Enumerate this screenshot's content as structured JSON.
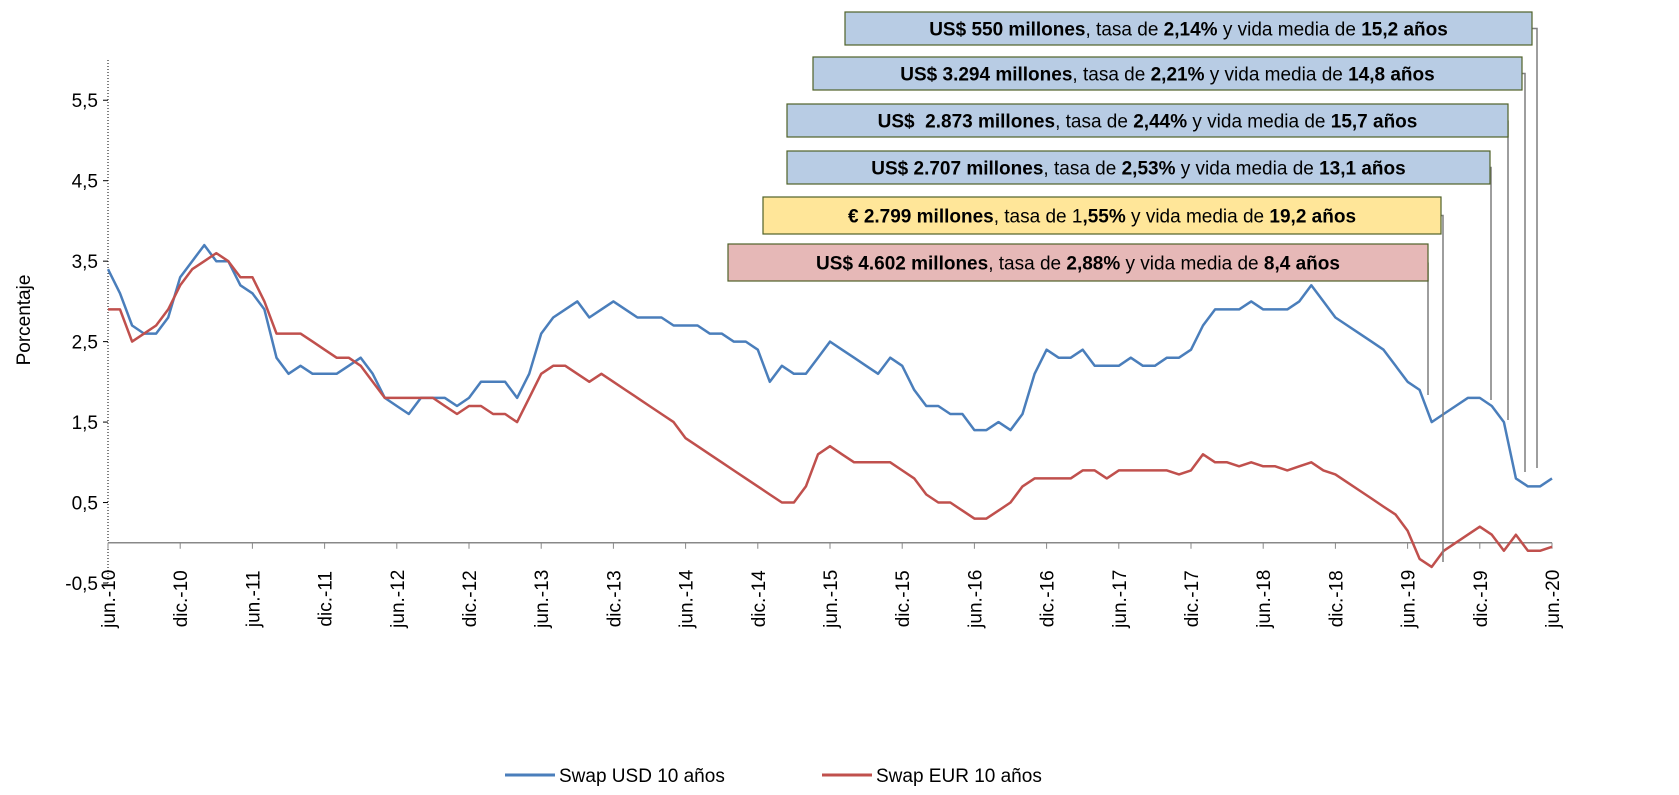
{
  "chart_data": {
    "type": "line",
    "y_label": "Porcentaje",
    "categories": [
      "jun.-10",
      null,
      null,
      null,
      null,
      null,
      "dic.-10",
      null,
      null,
      null,
      null,
      null,
      "jun.-11",
      null,
      null,
      null,
      null,
      null,
      "dic.-11",
      null,
      null,
      null,
      null,
      null,
      "jun.-12",
      null,
      null,
      null,
      null,
      null,
      "dic.-12",
      null,
      null,
      null,
      null,
      null,
      "jun.-13",
      null,
      null,
      null,
      null,
      null,
      "dic.-13",
      null,
      null,
      null,
      null,
      null,
      "jun.-14",
      null,
      null,
      null,
      null,
      null,
      "dic.-14",
      null,
      null,
      null,
      null,
      null,
      "jun.-15",
      null,
      null,
      null,
      null,
      null,
      "dic.-15",
      null,
      null,
      null,
      null,
      null,
      "jun.-16",
      null,
      null,
      null,
      null,
      null,
      "dic.-16",
      null,
      null,
      null,
      null,
      null,
      "jun.-17",
      null,
      null,
      null,
      null,
      null,
      "dic.-17",
      null,
      null,
      null,
      null,
      null,
      "jun.-18",
      null,
      null,
      null,
      null,
      null,
      "dic.-18",
      null,
      null,
      null,
      null,
      null,
      "jun.-19",
      null,
      null,
      null,
      null,
      null,
      "dic.-19",
      null,
      null,
      null,
      null,
      null,
      "jun.-20"
    ],
    "series": [
      {
        "name": "Swap USD 10 años",
        "color": "#4a7ebb",
        "values": [
          3.4,
          3.1,
          2.7,
          2.6,
          2.6,
          2.8,
          3.3,
          3.5,
          3.7,
          3.5,
          3.5,
          3.2,
          3.1,
          2.9,
          2.3,
          2.1,
          2.2,
          2.1,
          2.1,
          2.1,
          2.2,
          2.3,
          2.1,
          1.8,
          1.7,
          1.6,
          1.8,
          1.8,
          1.8,
          1.7,
          1.8,
          2.0,
          2.0,
          2.0,
          1.8,
          2.1,
          2.6,
          2.8,
          2.9,
          3.0,
          2.8,
          2.9,
          3.0,
          2.9,
          2.8,
          2.8,
          2.8,
          2.7,
          2.7,
          2.7,
          2.6,
          2.6,
          2.5,
          2.5,
          2.4,
          2.0,
          2.2,
          2.1,
          2.1,
          2.3,
          2.5,
          2.4,
          2.3,
          2.2,
          2.1,
          2.3,
          2.2,
          1.9,
          1.7,
          1.7,
          1.6,
          1.6,
          1.4,
          1.4,
          1.5,
          1.4,
          1.6,
          2.1,
          2.4,
          2.3,
          2.3,
          2.4,
          2.2,
          2.2,
          2.2,
          2.3,
          2.2,
          2.2,
          2.3,
          2.3,
          2.4,
          2.7,
          2.9,
          2.9,
          2.9,
          3.0,
          2.9,
          2.9,
          2.9,
          3.0,
          3.2,
          3.0,
          2.8,
          2.7,
          2.6,
          2.5,
          2.4,
          2.2,
          2.0,
          1.9,
          1.5,
          1.6,
          1.7,
          1.8,
          1.8,
          1.7,
          1.5,
          0.8,
          0.7,
          0.7,
          0.8
        ]
      },
      {
        "name": "Swap EUR 10 años",
        "color": "#c0504d",
        "values": [
          2.9,
          2.9,
          2.5,
          2.6,
          2.7,
          2.9,
          3.2,
          3.4,
          3.5,
          3.6,
          3.5,
          3.3,
          3.3,
          3.0,
          2.6,
          2.6,
          2.6,
          2.5,
          2.4,
          2.3,
          2.3,
          2.2,
          2.0,
          1.8,
          1.8,
          1.8,
          1.8,
          1.8,
          1.7,
          1.6,
          1.7,
          1.7,
          1.6,
          1.6,
          1.5,
          1.8,
          2.1,
          2.2,
          2.2,
          2.1,
          2.0,
          2.1,
          2.0,
          1.9,
          1.8,
          1.7,
          1.6,
          1.5,
          1.3,
          1.2,
          1.1,
          1.0,
          0.9,
          0.8,
          0.7,
          0.6,
          0.5,
          0.5,
          0.7,
          1.1,
          1.2,
          1.1,
          1.0,
          1.0,
          1.0,
          1.0,
          0.9,
          0.8,
          0.6,
          0.5,
          0.5,
          0.4,
          0.3,
          0.3,
          0.4,
          0.5,
          0.7,
          0.8,
          0.8,
          0.8,
          0.8,
          0.9,
          0.9,
          0.8,
          0.9,
          0.9,
          0.9,
          0.9,
          0.9,
          0.85,
          0.9,
          1.1,
          1.0,
          1.0,
          0.95,
          1.0,
          0.95,
          0.95,
          0.9,
          0.95,
          1.0,
          0.9,
          0.85,
          0.75,
          0.65,
          0.55,
          0.45,
          0.35,
          0.15,
          -0.2,
          -0.3,
          -0.1,
          0.0,
          0.1,
          0.2,
          0.1,
          -0.1,
          0.1,
          -0.1,
          -0.1,
          -0.05
        ]
      }
    ],
    "ylim": [
      -0.5,
      6.0
    ],
    "yticks": [
      {
        "value": -0.5,
        "label": "-0,5"
      },
      {
        "value": 0.5,
        "label": "0,5"
      },
      {
        "value": 1.5,
        "label": "1,5"
      },
      {
        "value": 2.5,
        "label": "2,5"
      },
      {
        "value": 3.5,
        "label": "3,5"
      },
      {
        "value": 4.5,
        "label": "4,5"
      },
      {
        "value": 5.5,
        "label": "5,5"
      }
    ],
    "legend": "bottom",
    "annotations": [
      {
        "color": "#b8cce4",
        "parts": [
          {
            "text": "US$ 550 millones",
            "bold": true
          },
          {
            "text": ", tasa de ",
            "bold": false
          },
          {
            "text": "2,14%",
            "bold": true
          },
          {
            "text": " y vida media de ",
            "bold": false
          },
          {
            "text": "15,2 años",
            "bold": true
          }
        ]
      },
      {
        "color": "#b8cce4",
        "parts": [
          {
            "text": "US$ 3.294 millones",
            "bold": true
          },
          {
            "text": ", tasa de ",
            "bold": false
          },
          {
            "text": "2,21%",
            "bold": true
          },
          {
            "text": " y vida media de ",
            "bold": false
          },
          {
            "text": "14,8 años",
            "bold": true
          }
        ]
      },
      {
        "color": "#b8cce4",
        "parts": [
          {
            "text": "US$  2.873 millones",
            "bold": true
          },
          {
            "text": ", tasa de ",
            "bold": false
          },
          {
            "text": "2,44%",
            "bold": true
          },
          {
            "text": " y vida media de ",
            "bold": false
          },
          {
            "text": "15,7 años",
            "bold": true
          }
        ]
      },
      {
        "color": "#b8cce4",
        "parts": [
          {
            "text": "US$ 2.707 millones",
            "bold": true
          },
          {
            "text": ", tasa de ",
            "bold": false
          },
          {
            "text": "2,53%",
            "bold": true
          },
          {
            "text": " y vida media de ",
            "bold": false
          },
          {
            "text": "13,1 años",
            "bold": true
          }
        ]
      },
      {
        "color": "#ffe699",
        "parts": [
          {
            "text": "€ 2.799 millones",
            "bold": true
          },
          {
            "text": ", tasa de 1",
            "bold": false
          },
          {
            "text": ",55%",
            "bold": true
          },
          {
            "text": " y vida media de ",
            "bold": false
          },
          {
            "text": "19,2 años",
            "bold": true
          }
        ]
      },
      {
        "color": "#e6b8b7",
        "parts": [
          {
            "text": "US$ 4.602 millones",
            "bold": true
          },
          {
            "text": ", tasa de ",
            "bold": false
          },
          {
            "text": "2,88%",
            "bold": true
          },
          {
            "text": " y vida media de ",
            "bold": false
          },
          {
            "text": "8,4 años",
            "bold": true
          }
        ]
      }
    ]
  }
}
